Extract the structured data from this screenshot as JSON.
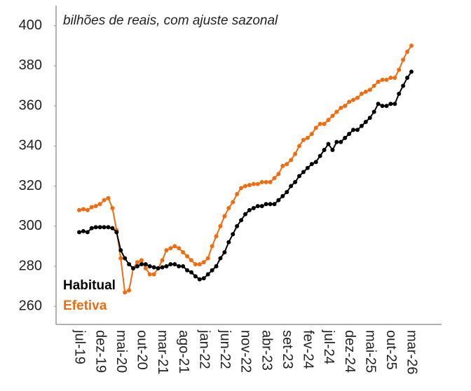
{
  "chart_data": {
    "type": "line",
    "subtitle": "bilhões de reais, com ajuste sazonal",
    "categories": [
      "jul-19",
      null,
      null,
      null,
      null,
      "dez-19",
      null,
      null,
      null,
      null,
      "mai-20",
      null,
      null,
      null,
      null,
      "out-20",
      null,
      null,
      null,
      null,
      "mar-21",
      null,
      null,
      null,
      null,
      "ago-21",
      null,
      null,
      null,
      null,
      "jan-22",
      null,
      null,
      null,
      null,
      "jun-22",
      null,
      null,
      null,
      null,
      "nov-22",
      null,
      null,
      null,
      null,
      "abr-23",
      null,
      null,
      null,
      null,
      "set-23",
      null,
      null,
      null,
      null,
      "fev-24",
      null,
      null,
      null,
      null,
      "jul-24",
      null,
      null,
      null,
      null,
      "dez-24",
      null,
      null,
      null,
      null,
      "mai-25",
      null,
      null,
      null,
      null,
      "out-25",
      null,
      null,
      null,
      null,
      "mar-26"
    ],
    "series": [
      {
        "name": "Habitual",
        "color": "#000000",
        "values": [
          297,
          297.5,
          297,
          299,
          299.5,
          299.5,
          299.5,
          299.5,
          299,
          297,
          288,
          284,
          281,
          279,
          280,
          281,
          281,
          280,
          279.5,
          279,
          279.5,
          280,
          281,
          281,
          280,
          280,
          278,
          277,
          275,
          273.5,
          274,
          276,
          278,
          280,
          284,
          287,
          292,
          296,
          300,
          303,
          306,
          308,
          309,
          310,
          310,
          311,
          311,
          311,
          313,
          315,
          317,
          320,
          322,
          325,
          327,
          329,
          331,
          332,
          335,
          338,
          341,
          338,
          342,
          342,
          344,
          346,
          348,
          348,
          350,
          352,
          354,
          357,
          361,
          360,
          360,
          361,
          361,
          366,
          370,
          374,
          377
        ]
      },
      {
        "name": "Efetiva",
        "color": "#f26b0f",
        "values": [
          308,
          308.5,
          308,
          309.5,
          310,
          311,
          313,
          314,
          309,
          298,
          284,
          267,
          268,
          279,
          282,
          283,
          279,
          276,
          276,
          279,
          283,
          288,
          289,
          290,
          289,
          287,
          285,
          283,
          281,
          281,
          282,
          284,
          290,
          295,
          300,
          305,
          309,
          312,
          316,
          319,
          320,
          320.5,
          321,
          321,
          322,
          322,
          322,
          324,
          326,
          330,
          331,
          333,
          336,
          340,
          343,
          344,
          346,
          349,
          351,
          351,
          353,
          355,
          357,
          359,
          360,
          362,
          363,
          364,
          366,
          367,
          368,
          370,
          372,
          373,
          373,
          374,
          374,
          378,
          383,
          387,
          390
        ]
      }
    ],
    "ylim": [
      251,
      410
    ],
    "yticks": [
      260,
      280,
      300,
      320,
      340,
      360,
      380,
      400
    ]
  }
}
